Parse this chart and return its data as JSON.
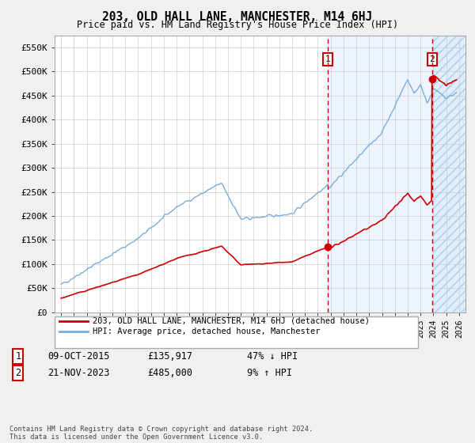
{
  "title": "203, OLD HALL LANE, MANCHESTER, M14 6HJ",
  "subtitle": "Price paid vs. HM Land Registry's House Price Index (HPI)",
  "hpi_color": "#7aaddc",
  "price_color": "#cc0000",
  "marker1_x": 2015.78,
  "marker1_y": 135917,
  "marker2_x": 2023.89,
  "marker2_y": 485000,
  "ylim": [
    0,
    575000
  ],
  "xlim": [
    1994.5,
    2026.5
  ],
  "yticks": [
    0,
    50000,
    100000,
    150000,
    200000,
    250000,
    300000,
    350000,
    400000,
    450000,
    500000,
    550000
  ],
  "ytick_labels": [
    "£0",
    "£50K",
    "£100K",
    "£150K",
    "£200K",
    "£250K",
    "£300K",
    "£350K",
    "£400K",
    "£450K",
    "£500K",
    "£550K"
  ],
  "xticks": [
    1995,
    1996,
    1997,
    1998,
    1999,
    2000,
    2001,
    2002,
    2003,
    2004,
    2005,
    2006,
    2007,
    2008,
    2009,
    2010,
    2011,
    2012,
    2013,
    2014,
    2015,
    2016,
    2017,
    2018,
    2019,
    2020,
    2021,
    2022,
    2023,
    2024,
    2025,
    2026
  ],
  "legend_label1": "203, OLD HALL LANE, MANCHESTER, M14 6HJ (detached house)",
  "legend_label2": "HPI: Average price, detached house, Manchester",
  "marker1_date": "09-OCT-2015",
  "marker1_price": "£135,917",
  "marker1_hpi": "47% ↓ HPI",
  "marker2_date": "21-NOV-2023",
  "marker2_price": "£485,000",
  "marker2_hpi": "9% ↑ HPI",
  "footer": "Contains HM Land Registry data © Crown copyright and database right 2024.\nThis data is licensed under the Open Government Licence v3.0.",
  "background_color": "#f0f0f0",
  "plot_bg_color": "#ffffff",
  "hatch_color": "#ddeeff"
}
